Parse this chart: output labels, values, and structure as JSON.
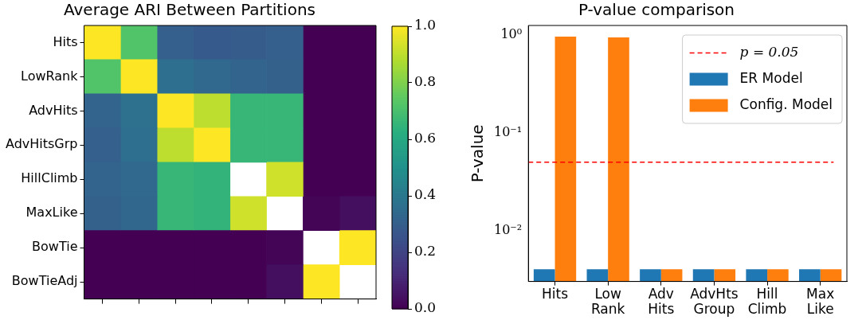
{
  "chart_data": [
    {
      "type": "heatmap",
      "title": "Average ARI Between Partitions",
      "categories": [
        null,
        null,
        null,
        null,
        null,
        null,
        null,
        null
      ],
      "y_categories": [
        "Hits",
        "LowRank",
        "AdvHits",
        "AdvHitsGrp",
        "HillClimb",
        "MaxLike",
        "BowTie",
        "BowTieAdj"
      ],
      "cells": [
        [
          1.0,
          0.72,
          0.3,
          0.28,
          0.29,
          0.3,
          0.0,
          0.0
        ],
        [
          0.72,
          1.0,
          0.36,
          0.34,
          0.32,
          0.31,
          0.0,
          0.0
        ],
        [
          0.32,
          0.37,
          1.0,
          0.9,
          0.66,
          0.66,
          0.0,
          0.0
        ],
        [
          0.3,
          0.36,
          0.9,
          1.0,
          0.66,
          0.66,
          0.0,
          0.0
        ],
        [
          0.32,
          0.34,
          0.66,
          0.65,
          null,
          0.93,
          0.0,
          0.0
        ],
        [
          0.31,
          0.33,
          0.66,
          0.65,
          0.93,
          null,
          0.01,
          0.04
        ],
        [
          0.0,
          0.0,
          0.0,
          0.0,
          0.0,
          0.01,
          null,
          1.0
        ],
        [
          0.0,
          0.0,
          0.0,
          0.0,
          0.0,
          0.04,
          1.0,
          null
        ]
      ],
      "clim": [
        0,
        1
      ],
      "cticks": [
        {
          "value": 0,
          "label": "0.0"
        },
        {
          "value": 0.2,
          "label": "0.2"
        },
        {
          "value": 0.4,
          "label": "0.4"
        },
        {
          "value": 0.6,
          "label": "0.6"
        },
        {
          "value": 0.8,
          "label": "0.8"
        },
        {
          "value": 1,
          "label": "1.0"
        }
      ]
    },
    {
      "type": "bar",
      "title": "P-value comparison",
      "ylabel": "P-value",
      "categories": [
        "Hits",
        "Low Rank",
        "Adv Hits",
        "AdvHts Group",
        "Hill Climb",
        "Max Like"
      ],
      "series": [
        {
          "name": "ER Model",
          "color": "#1f77b4",
          "values": [
            0.004,
            0.004,
            0.004,
            0.004,
            0.004,
            0.004
          ]
        },
        {
          "name": "Config. Model",
          "color": "#ff7f0e",
          "values": [
            0.97,
            0.95,
            0.004,
            0.004,
            0.004,
            0.004
          ]
        }
      ],
      "log": true,
      "ylim": [
        0.003,
        1.26
      ],
      "yticks": [
        {
          "value": 0.01,
          "label": "10⁻²"
        },
        {
          "value": 0.1,
          "label": "10⁻¹"
        },
        {
          "value": 1,
          "label": "10⁰"
        }
      ],
      "ref_lines": [
        {
          "axis": "y",
          "value": 0.05,
          "label": "p = 0.05",
          "color": "#ff0000",
          "line_style": "dashed"
        }
      ],
      "legend": "top right"
    }
  ]
}
